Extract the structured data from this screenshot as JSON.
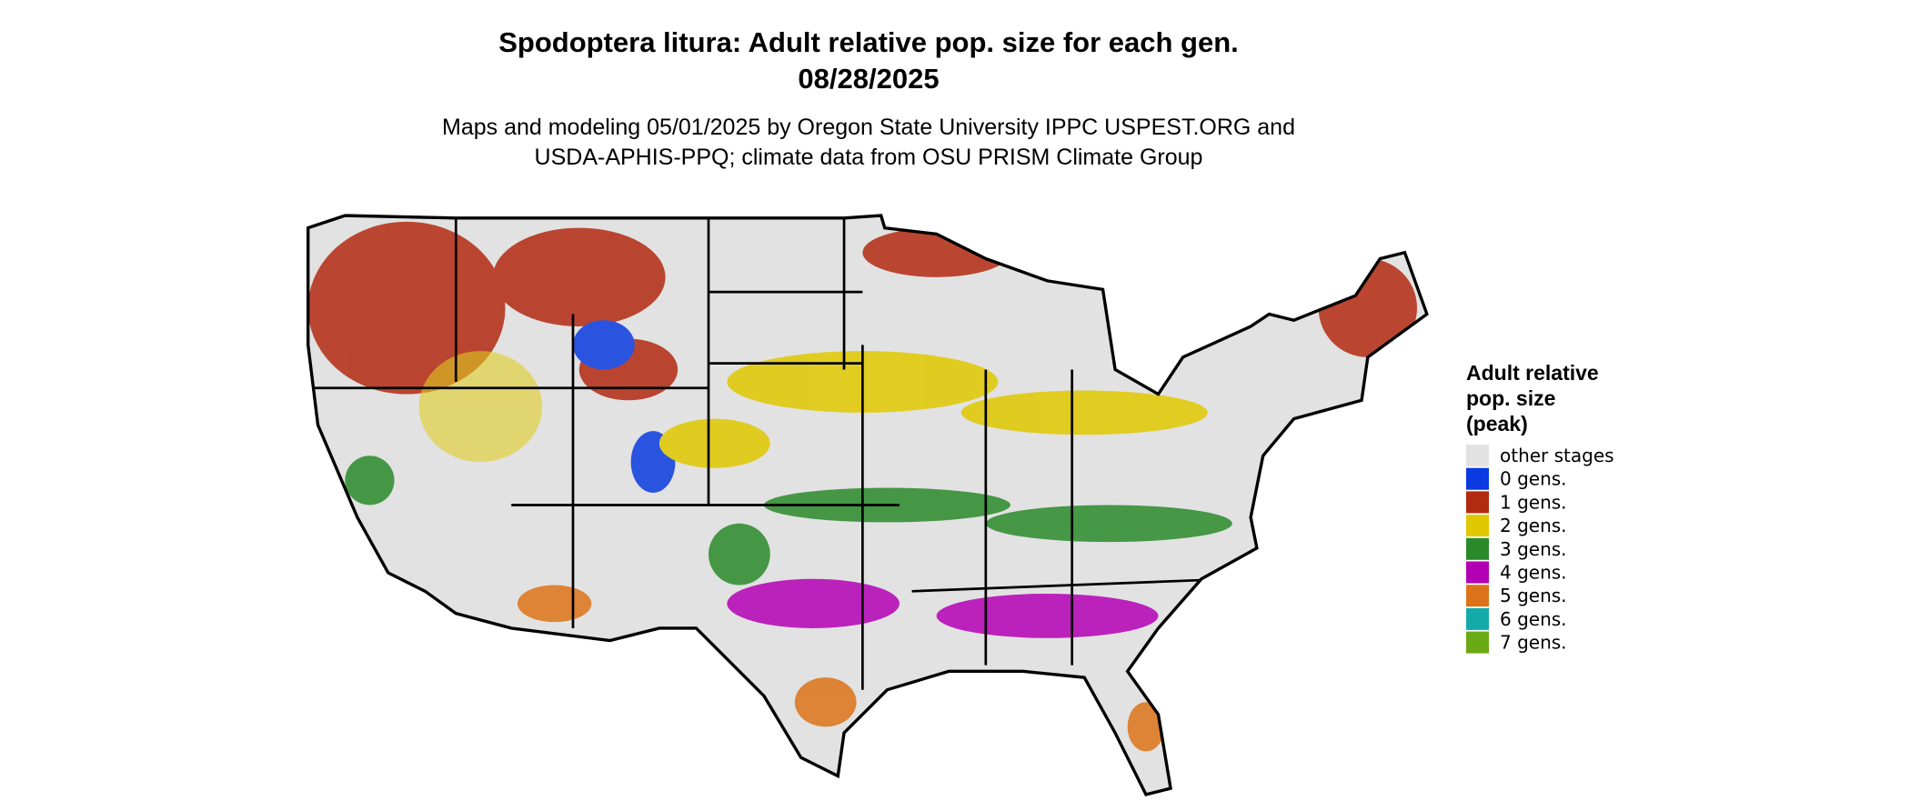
{
  "header": {
    "title": "Spodoptera litura: Adult relative pop. size for each gen.",
    "date": "08/28/2025",
    "subtitle_lines": [
      "Maps and modeling 05/01/2025 by Oregon State University IPPC USPEST.ORG and",
      "USDA-APHIS-PPQ; climate data from OSU PRISM Climate Group"
    ]
  },
  "legend": {
    "title_lines": [
      "Adult relative",
      "pop. size",
      "(peak)"
    ],
    "items": [
      {
        "label": "other stages",
        "color": "#e2e2e2"
      },
      {
        "label": "0 gens.",
        "color": "#0a3be0"
      },
      {
        "label": "1 gens.",
        "color": "#b32a12"
      },
      {
        "label": "2 gens.",
        "color": "#e0c800"
      },
      {
        "label": "3 gens.",
        "color": "#2a8a2a"
      },
      {
        "label": "4 gens.",
        "color": "#b400b4"
      },
      {
        "label": "5 gens.",
        "color": "#dc7318"
      },
      {
        "label": "6 gens.",
        "color": "#14aaaa"
      },
      {
        "label": "7 gens.",
        "color": "#6aaa14"
      }
    ]
  }
}
